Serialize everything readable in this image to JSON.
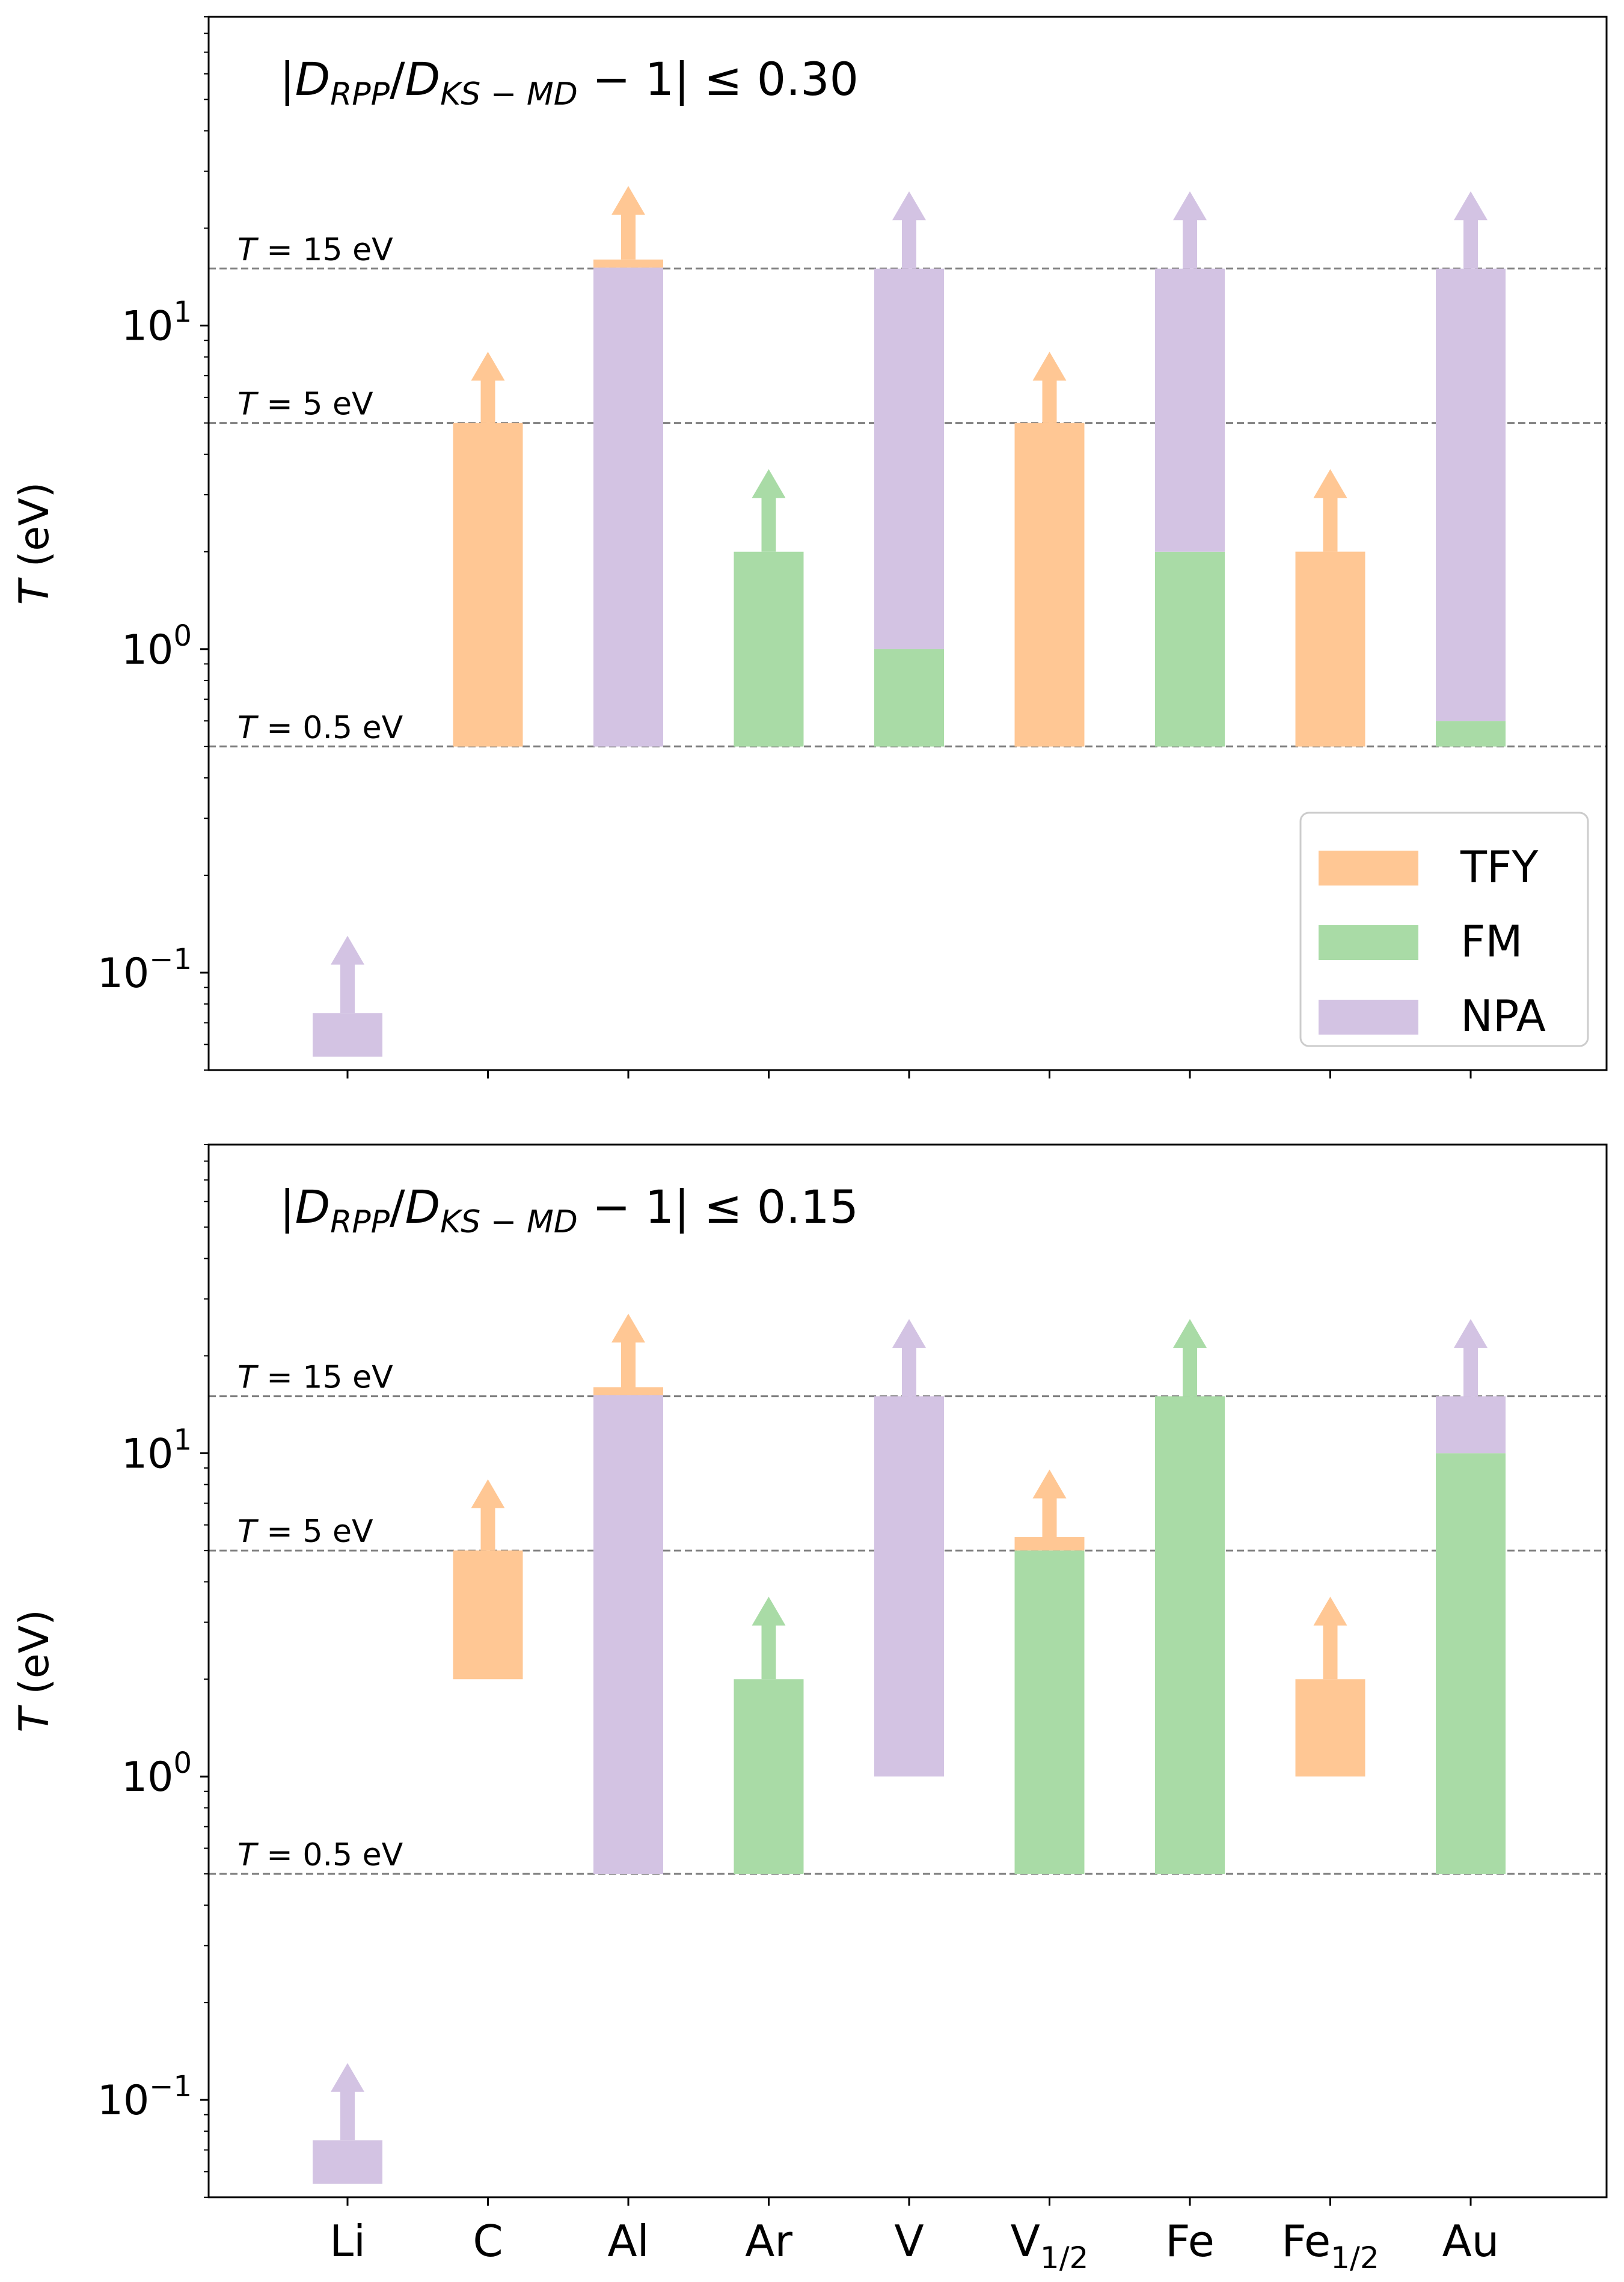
{
  "colors": {
    "TFY": "#ffc794",
    "FM": "#a9dba6",
    "NPA": "#d3c3e3",
    "guide": "#7f7f7f",
    "axis": "#000000"
  },
  "chart_data": [
    {
      "type": "bar",
      "scale": "log",
      "title_parts": {
        "pre": "|",
        "d1": "D",
        "s1": "RPP",
        "slash": "/",
        "d2": "D",
        "s2": "KS − MD",
        "post": " − 1| ≤ 0.30"
      },
      "ylabel": {
        "var": "T",
        "unit": " (eV)"
      },
      "ylim": [
        0.05,
        90
      ],
      "yticks": [
        {
          "base": "10",
          "exp": "−1",
          "value": 0.1
        },
        {
          "base": "10",
          "exp": "0",
          "value": 1
        },
        {
          "base": "10",
          "exp": "1",
          "value": 10
        }
      ],
      "categories": [
        {
          "label": "Li",
          "sub": ""
        },
        {
          "label": "C",
          "sub": ""
        },
        {
          "label": "Al",
          "sub": ""
        },
        {
          "label": "Ar",
          "sub": ""
        },
        {
          "label": "V",
          "sub": ""
        },
        {
          "label": "V",
          "sub": "1/2"
        },
        {
          "label": "Fe",
          "sub": ""
        },
        {
          "label": "Fe",
          "sub": "1/2"
        },
        {
          "label": "Au",
          "sub": ""
        }
      ],
      "guides": [
        {
          "value": 15,
          "pre": "T",
          "text": " = 15 eV"
        },
        {
          "value": 5,
          "pre": "T",
          "text": " = 5 eV"
        },
        {
          "value": 0.5,
          "pre": "T",
          "text": " = 0.5 eV"
        }
      ],
      "bars": [
        {
          "cat": 0,
          "model": "NPA",
          "low": 0.055,
          "high": 0.075
        },
        {
          "cat": 1,
          "model": "TFY",
          "low": 0.5,
          "high": 5
        },
        {
          "cat": 2,
          "model": "TFY",
          "low": 15.1,
          "high": 16
        },
        {
          "cat": 2,
          "model": "NPA",
          "low": 0.5,
          "high": 15.1
        },
        {
          "cat": 3,
          "model": "FM",
          "low": 0.5,
          "high": 2
        },
        {
          "cat": 4,
          "model": "FM",
          "low": 0.5,
          "high": 1
        },
        {
          "cat": 4,
          "model": "NPA",
          "low": 1,
          "high": 15
        },
        {
          "cat": 5,
          "model": "TFY",
          "low": 0.5,
          "high": 5
        },
        {
          "cat": 6,
          "model": "FM",
          "low": 0.5,
          "high": 2
        },
        {
          "cat": 6,
          "model": "NPA",
          "low": 2,
          "high": 15
        },
        {
          "cat": 7,
          "model": "TFY",
          "low": 1.999,
          "high": 2
        },
        {
          "cat": 7,
          "model": "TFY",
          "low": 0.5,
          "high": 2
        },
        {
          "cat": 8,
          "model": "FM",
          "low": 0.5,
          "high": 0.6
        },
        {
          "cat": 8,
          "model": "NPA",
          "low": 0.6,
          "high": 15
        }
      ],
      "arrows": [
        {
          "cat": 0,
          "model": "NPA",
          "from": 0.075,
          "to": 0.13
        },
        {
          "cat": 1,
          "model": "TFY",
          "from": 5,
          "to": 8.3
        },
        {
          "cat": 2,
          "model": "TFY",
          "from": 16,
          "to": 27
        },
        {
          "cat": 3,
          "model": "FM",
          "from": 2,
          "to": 3.6
        },
        {
          "cat": 4,
          "model": "NPA",
          "from": 15,
          "to": 26
        },
        {
          "cat": 5,
          "model": "TFY",
          "from": 5,
          "to": 8.3
        },
        {
          "cat": 6,
          "model": "NPA",
          "from": 15,
          "to": 26
        },
        {
          "cat": 7,
          "model": "TFY",
          "from": 2,
          "to": 3.6
        },
        {
          "cat": 8,
          "model": "NPA",
          "from": 15,
          "to": 26
        }
      ],
      "legend": {
        "placement": "lower-right",
        "entries": [
          "TFY",
          "FM",
          "NPA"
        ]
      }
    },
    {
      "type": "bar",
      "scale": "log",
      "title_parts": {
        "pre": "|",
        "d1": "D",
        "s1": "RPP",
        "slash": "/",
        "d2": "D",
        "s2": "KS − MD",
        "post": " − 1| ≤ 0.15"
      },
      "ylabel": {
        "var": "T",
        "unit": " (eV)"
      },
      "ylim": [
        0.05,
        90
      ],
      "yticks": [
        {
          "base": "10",
          "exp": "−1",
          "value": 0.1
        },
        {
          "base": "10",
          "exp": "0",
          "value": 1
        },
        {
          "base": "10",
          "exp": "1",
          "value": 10
        }
      ],
      "categories": [
        {
          "label": "Li",
          "sub": ""
        },
        {
          "label": "C",
          "sub": ""
        },
        {
          "label": "Al",
          "sub": ""
        },
        {
          "label": "Ar",
          "sub": ""
        },
        {
          "label": "V",
          "sub": ""
        },
        {
          "label": "V",
          "sub": "1/2"
        },
        {
          "label": "Fe",
          "sub": ""
        },
        {
          "label": "Fe",
          "sub": "1/2"
        },
        {
          "label": "Au",
          "sub": ""
        }
      ],
      "guides": [
        {
          "value": 15,
          "pre": "T",
          "text": " = 15 eV"
        },
        {
          "value": 5,
          "pre": "T",
          "text": " = 5 eV"
        },
        {
          "value": 0.5,
          "pre": "T",
          "text": " = 0.5 eV"
        }
      ],
      "bars": [
        {
          "cat": 0,
          "model": "NPA",
          "low": 0.055,
          "high": 0.075
        },
        {
          "cat": 1,
          "model": "TFY",
          "low": 2,
          "high": 5
        },
        {
          "cat": 2,
          "model": "TFY",
          "low": 15.1,
          "high": 16
        },
        {
          "cat": 2,
          "model": "NPA",
          "low": 0.5,
          "high": 15.1
        },
        {
          "cat": 3,
          "model": "FM",
          "low": 0.5,
          "high": 2
        },
        {
          "cat": 4,
          "model": "NPA",
          "low": 1,
          "high": 15
        },
        {
          "cat": 5,
          "model": "FM",
          "low": 0.5,
          "high": 5
        },
        {
          "cat": 5,
          "model": "TFY",
          "low": 5,
          "high": 5.5
        },
        {
          "cat": 6,
          "model": "FM",
          "low": 0.5,
          "high": 15
        },
        {
          "cat": 7,
          "model": "TFY",
          "low": 1,
          "high": 2
        },
        {
          "cat": 8,
          "model": "FM",
          "low": 0.5,
          "high": 10
        },
        {
          "cat": 8,
          "model": "NPA",
          "low": 10,
          "high": 15
        }
      ],
      "arrows": [
        {
          "cat": 0,
          "model": "NPA",
          "from": 0.075,
          "to": 0.13
        },
        {
          "cat": 1,
          "model": "TFY",
          "from": 5,
          "to": 8.3
        },
        {
          "cat": 2,
          "model": "TFY",
          "from": 16,
          "to": 27
        },
        {
          "cat": 3,
          "model": "FM",
          "from": 2,
          "to": 3.6
        },
        {
          "cat": 4,
          "model": "NPA",
          "from": 15,
          "to": 26
        },
        {
          "cat": 5,
          "model": "TFY",
          "from": 5.5,
          "to": 8.9
        },
        {
          "cat": 6,
          "model": "FM",
          "from": 15,
          "to": 26
        },
        {
          "cat": 7,
          "model": "TFY",
          "from": 2,
          "to": 3.6
        },
        {
          "cat": 8,
          "model": "NPA",
          "from": 15,
          "to": 26
        }
      ],
      "legend": null
    }
  ]
}
